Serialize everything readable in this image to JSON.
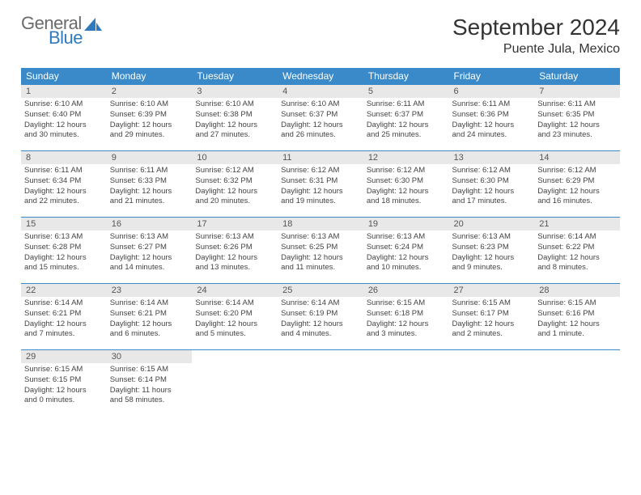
{
  "logo": {
    "text1": "General",
    "text2": "Blue"
  },
  "title": "September 2024",
  "location": "Puente Jula, Mexico",
  "weekdays": [
    "Sunday",
    "Monday",
    "Tuesday",
    "Wednesday",
    "Thursday",
    "Friday",
    "Saturday"
  ],
  "colors": {
    "header_bg": "#3a8ac9",
    "header_fg": "#ffffff",
    "daynum_bg": "#e8e8e8",
    "border": "#3a8ac9",
    "logo_general": "#6a6a6a",
    "logo_blue": "#2f7abf"
  },
  "days": [
    {
      "n": 1,
      "sunrise": "6:10 AM",
      "sunset": "6:40 PM",
      "dl1": "Daylight: 12 hours",
      "dl2": "and 30 minutes."
    },
    {
      "n": 2,
      "sunrise": "6:10 AM",
      "sunset": "6:39 PM",
      "dl1": "Daylight: 12 hours",
      "dl2": "and 29 minutes."
    },
    {
      "n": 3,
      "sunrise": "6:10 AM",
      "sunset": "6:38 PM",
      "dl1": "Daylight: 12 hours",
      "dl2": "and 27 minutes."
    },
    {
      "n": 4,
      "sunrise": "6:10 AM",
      "sunset": "6:37 PM",
      "dl1": "Daylight: 12 hours",
      "dl2": "and 26 minutes."
    },
    {
      "n": 5,
      "sunrise": "6:11 AM",
      "sunset": "6:37 PM",
      "dl1": "Daylight: 12 hours",
      "dl2": "and 25 minutes."
    },
    {
      "n": 6,
      "sunrise": "6:11 AM",
      "sunset": "6:36 PM",
      "dl1": "Daylight: 12 hours",
      "dl2": "and 24 minutes."
    },
    {
      "n": 7,
      "sunrise": "6:11 AM",
      "sunset": "6:35 PM",
      "dl1": "Daylight: 12 hours",
      "dl2": "and 23 minutes."
    },
    {
      "n": 8,
      "sunrise": "6:11 AM",
      "sunset": "6:34 PM",
      "dl1": "Daylight: 12 hours",
      "dl2": "and 22 minutes."
    },
    {
      "n": 9,
      "sunrise": "6:11 AM",
      "sunset": "6:33 PM",
      "dl1": "Daylight: 12 hours",
      "dl2": "and 21 minutes."
    },
    {
      "n": 10,
      "sunrise": "6:12 AM",
      "sunset": "6:32 PM",
      "dl1": "Daylight: 12 hours",
      "dl2": "and 20 minutes."
    },
    {
      "n": 11,
      "sunrise": "6:12 AM",
      "sunset": "6:31 PM",
      "dl1": "Daylight: 12 hours",
      "dl2": "and 19 minutes."
    },
    {
      "n": 12,
      "sunrise": "6:12 AM",
      "sunset": "6:30 PM",
      "dl1": "Daylight: 12 hours",
      "dl2": "and 18 minutes."
    },
    {
      "n": 13,
      "sunrise": "6:12 AM",
      "sunset": "6:30 PM",
      "dl1": "Daylight: 12 hours",
      "dl2": "and 17 minutes."
    },
    {
      "n": 14,
      "sunrise": "6:12 AM",
      "sunset": "6:29 PM",
      "dl1": "Daylight: 12 hours",
      "dl2": "and 16 minutes."
    },
    {
      "n": 15,
      "sunrise": "6:13 AM",
      "sunset": "6:28 PM",
      "dl1": "Daylight: 12 hours",
      "dl2": "and 15 minutes."
    },
    {
      "n": 16,
      "sunrise": "6:13 AM",
      "sunset": "6:27 PM",
      "dl1": "Daylight: 12 hours",
      "dl2": "and 14 minutes."
    },
    {
      "n": 17,
      "sunrise": "6:13 AM",
      "sunset": "6:26 PM",
      "dl1": "Daylight: 12 hours",
      "dl2": "and 13 minutes."
    },
    {
      "n": 18,
      "sunrise": "6:13 AM",
      "sunset": "6:25 PM",
      "dl1": "Daylight: 12 hours",
      "dl2": "and 11 minutes."
    },
    {
      "n": 19,
      "sunrise": "6:13 AM",
      "sunset": "6:24 PM",
      "dl1": "Daylight: 12 hours",
      "dl2": "and 10 minutes."
    },
    {
      "n": 20,
      "sunrise": "6:13 AM",
      "sunset": "6:23 PM",
      "dl1": "Daylight: 12 hours",
      "dl2": "and 9 minutes."
    },
    {
      "n": 21,
      "sunrise": "6:14 AM",
      "sunset": "6:22 PM",
      "dl1": "Daylight: 12 hours",
      "dl2": "and 8 minutes."
    },
    {
      "n": 22,
      "sunrise": "6:14 AM",
      "sunset": "6:21 PM",
      "dl1": "Daylight: 12 hours",
      "dl2": "and 7 minutes."
    },
    {
      "n": 23,
      "sunrise": "6:14 AM",
      "sunset": "6:21 PM",
      "dl1": "Daylight: 12 hours",
      "dl2": "and 6 minutes."
    },
    {
      "n": 24,
      "sunrise": "6:14 AM",
      "sunset": "6:20 PM",
      "dl1": "Daylight: 12 hours",
      "dl2": "and 5 minutes."
    },
    {
      "n": 25,
      "sunrise": "6:14 AM",
      "sunset": "6:19 PM",
      "dl1": "Daylight: 12 hours",
      "dl2": "and 4 minutes."
    },
    {
      "n": 26,
      "sunrise": "6:15 AM",
      "sunset": "6:18 PM",
      "dl1": "Daylight: 12 hours",
      "dl2": "and 3 minutes."
    },
    {
      "n": 27,
      "sunrise": "6:15 AM",
      "sunset": "6:17 PM",
      "dl1": "Daylight: 12 hours",
      "dl2": "and 2 minutes."
    },
    {
      "n": 28,
      "sunrise": "6:15 AM",
      "sunset": "6:16 PM",
      "dl1": "Daylight: 12 hours",
      "dl2": "and 1 minute."
    },
    {
      "n": 29,
      "sunrise": "6:15 AM",
      "sunset": "6:15 PM",
      "dl1": "Daylight: 12 hours",
      "dl2": "and 0 minutes."
    },
    {
      "n": 30,
      "sunrise": "6:15 AM",
      "sunset": "6:14 PM",
      "dl1": "Daylight: 11 hours",
      "dl2": "and 58 minutes."
    }
  ],
  "labels": {
    "sunrise_prefix": "Sunrise: ",
    "sunset_prefix": "Sunset: "
  }
}
